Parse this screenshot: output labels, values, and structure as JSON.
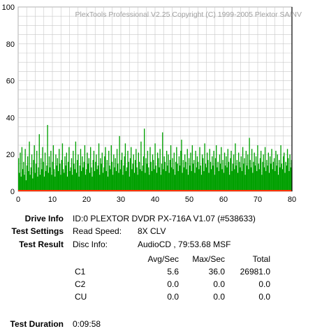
{
  "chart_data": {
    "type": "bar",
    "watermark": "PlexTools Professional V2.25 Copyright (C) 1999-2005 Plextor SA/NV",
    "xlim": [
      0,
      80
    ],
    "ylim": [
      0,
      100
    ],
    "x_ticks": [
      "0",
      "10",
      "20",
      "30",
      "40",
      "50",
      "60",
      "70",
      "80"
    ],
    "y_ticks": [
      "0",
      "20",
      "40",
      "60",
      "80",
      "100"
    ],
    "grid": true,
    "series": [
      {
        "color": "#00a000",
        "base_color": "#ff3300",
        "values": [
          18,
          10,
          21,
          8,
          24,
          12,
          16,
          9,
          23,
          6,
          14,
          19,
          11,
          27,
          9,
          13,
          20,
          7,
          17,
          25,
          10,
          15,
          22,
          8,
          13,
          31,
          9,
          18,
          12,
          24,
          16,
          8,
          21,
          11,
          14,
          36,
          10,
          19,
          13,
          22,
          9,
          16,
          25,
          12,
          8,
          20,
          14,
          18,
          11,
          23,
          15,
          9,
          17,
          26,
          12,
          10,
          19,
          14,
          21,
          8,
          16,
          24,
          11,
          13,
          18,
          9,
          22,
          15,
          12,
          27,
          10,
          17,
          20,
          8,
          14,
          23,
          11,
          19,
          13,
          16,
          25,
          9,
          12,
          21,
          15,
          18,
          10,
          24,
          13,
          8,
          17,
          22,
          11,
          16,
          20,
          12,
          14,
          26,
          9,
          18,
          15,
          21,
          10,
          13,
          19,
          24,
          11,
          17,
          8,
          22,
          14,
          12,
          25,
          16,
          9,
          20,
          13,
          18,
          11,
          23,
          15,
          10,
          30,
          12,
          17,
          21,
          9,
          14,
          19,
          26,
          11,
          13,
          22,
          16,
          8,
          18,
          24,
          12,
          15,
          20,
          10,
          17,
          23,
          13,
          9,
          21,
          16,
          12,
          27,
          11,
          14,
          19,
          34,
          10,
          18,
          15,
          22,
          13,
          9,
          24,
          16,
          11,
          20,
          17,
          12,
          26,
          14,
          10,
          21,
          18,
          13,
          23,
          9,
          15,
          32,
          12,
          19,
          16,
          11,
          22,
          14,
          20,
          10,
          17,
          25,
          13,
          18,
          12,
          21,
          9,
          16,
          24,
          15,
          11,
          19,
          14,
          22,
          28,
          10,
          17,
          13,
          20,
          16,
          12,
          23,
          9,
          18,
          14,
          21,
          11,
          25,
          15,
          17,
          10,
          22,
          13,
          19,
          16,
          12,
          24,
          14,
          9,
          20,
          18,
          11,
          26,
          15,
          13,
          21,
          17,
          10,
          23,
          16,
          12,
          19,
          14,
          22,
          9,
          18,
          25,
          13,
          16,
          11,
          20,
          15,
          24,
          12,
          17,
          10,
          21,
          14,
          19,
          13,
          23,
          16,
          9,
          18,
          22,
          11,
          15,
          20,
          12,
          26,
          14,
          17,
          10,
          21,
          16,
          13,
          19,
          11,
          24,
          15,
          18,
          9,
          22,
          14,
          20,
          12,
          29,
          17,
          13,
          23,
          10,
          16,
          21,
          14,
          19,
          11,
          25,
          15,
          12,
          18,
          22,
          9,
          16,
          20,
          13,
          24,
          11,
          17,
          14,
          21,
          10,
          19,
          15,
          23,
          12,
          16,
          18,
          11,
          22,
          14,
          20,
          9,
          17,
          13,
          25,
          15,
          12,
          19,
          21,
          10,
          16,
          14,
          23,
          18,
          11,
          20,
          13,
          17
        ]
      }
    ]
  },
  "info": {
    "drive_info_label": "Drive Info",
    "drive_info_value": "ID:0 PLEXTOR DVDR PX-716A V1.07 (#538633)",
    "test_settings_label": "Test Settings",
    "read_speed_label": "Read Speed:",
    "read_speed_value": "8X CLV",
    "test_result_label": "Test Result",
    "disc_info_label": "Disc Info:",
    "disc_info_value": "AudioCD , 79:53.68 MSF",
    "test_duration_label": "Test Duration",
    "test_duration_value": "0:09:58"
  },
  "results": {
    "headers": [
      "Avg/Sec",
      "Max/Sec",
      "Total"
    ],
    "rows": [
      {
        "name": "C1",
        "avg": "5.6",
        "max": "36.0",
        "total": "26981.0"
      },
      {
        "name": "C2",
        "avg": "0.0",
        "max": "0.0",
        "total": "0.0"
      },
      {
        "name": "CU",
        "avg": "0.0",
        "max": "0.0",
        "total": "0.0"
      }
    ]
  }
}
